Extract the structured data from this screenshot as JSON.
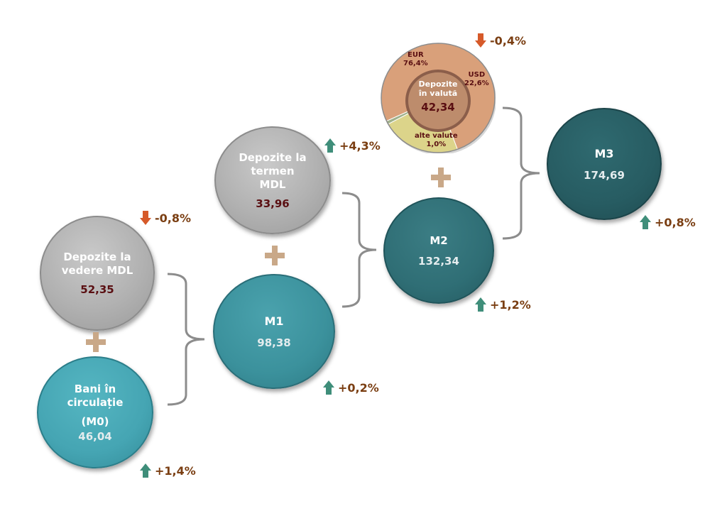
{
  "nodes": {
    "bani": {
      "label_line1": "Bani în",
      "label_line2": "circulație",
      "label_line3": "(M0)",
      "value": "46,04",
      "change": "+1,4%",
      "direction": "up"
    },
    "vedere": {
      "label_line1": "Depozite la",
      "label_line2": "vedere MDL",
      "value": "52,35",
      "change": "-0,8%",
      "direction": "down"
    },
    "m1": {
      "label": "M1",
      "value": "98,38",
      "change": "+0,2%",
      "direction": "up"
    },
    "termen": {
      "label_line1": "Depozite la",
      "label_line2": "termen",
      "label_line3": "MDL",
      "value": "33,96",
      "change": "+4,3%",
      "direction": "up"
    },
    "m2": {
      "label": "M2",
      "value": "132,34",
      "change": "+1,2%",
      "direction": "up"
    },
    "valuta": {
      "label_line1": "Depozite",
      "label_line2": "în valută",
      "value": "42,34",
      "change": "-0,4%",
      "direction": "down"
    },
    "m3": {
      "label": "M3",
      "value": "174,69",
      "change": "+0,8%",
      "direction": "up"
    }
  },
  "chart_data": {
    "type": "pie",
    "title": "",
    "slices": [
      {
        "name": "EUR",
        "label": "EUR\n76,4%",
        "value": 76.4,
        "color": "#d9a07a"
      },
      {
        "name": "USD",
        "label": "USD\n22,6%",
        "value": 22.6,
        "color": "#dcd48a"
      },
      {
        "name": "alte valute",
        "label": "alte valute\n1,0%",
        "value": 1.0,
        "color": "#9fb08a"
      }
    ],
    "center_label": "Depozite în valută",
    "center_value": "42,34"
  },
  "slice_text": {
    "eur_name": "EUR",
    "eur_pct": "76,4%",
    "usd_name": "USD",
    "usd_pct": "22,6%",
    "alte_name": "alte valute",
    "alte_pct": "1,0%"
  },
  "colors": {
    "up_arrow": "#3f8e7a",
    "down_arrow": "#d65a2a",
    "plus": "#c9a888",
    "bracket": "#8c8c8c",
    "change_text": "#7a3e12"
  }
}
